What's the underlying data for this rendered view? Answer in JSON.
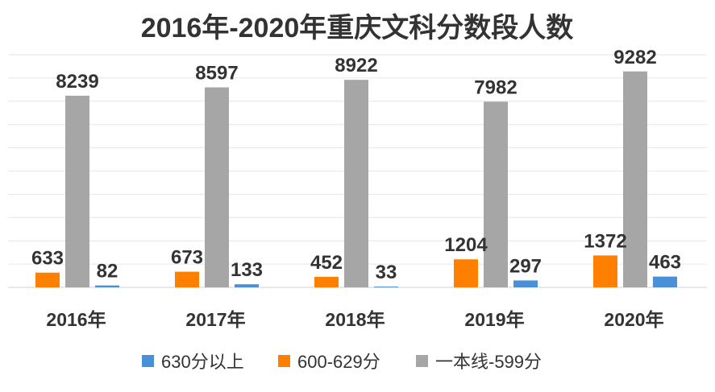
{
  "chart_data": {
    "type": "bar",
    "title": "2016年-2020年重庆文科分数段人数",
    "xlabel": "",
    "ylabel": "",
    "categories": [
      "2016年",
      "2017年",
      "2018年",
      "2019年",
      "2020年"
    ],
    "series": [
      {
        "name": "630分以上",
        "color": "#4A90D9",
        "values": [
          82,
          133,
          33,
          297,
          463
        ]
      },
      {
        "name": "600-629分",
        "color": "#FF7F00",
        "values": [
          633,
          673,
          452,
          1204,
          1372
        ]
      },
      {
        "name": "一本线-599分",
        "color": "#A6A6A6",
        "values": [
          8239,
          8597,
          8922,
          7982,
          9282
        ]
      }
    ],
    "bar_order": [
      1,
      2,
      0
    ],
    "ylim": [
      0,
      10000
    ],
    "grid": true,
    "legend_position": "bottom"
  }
}
